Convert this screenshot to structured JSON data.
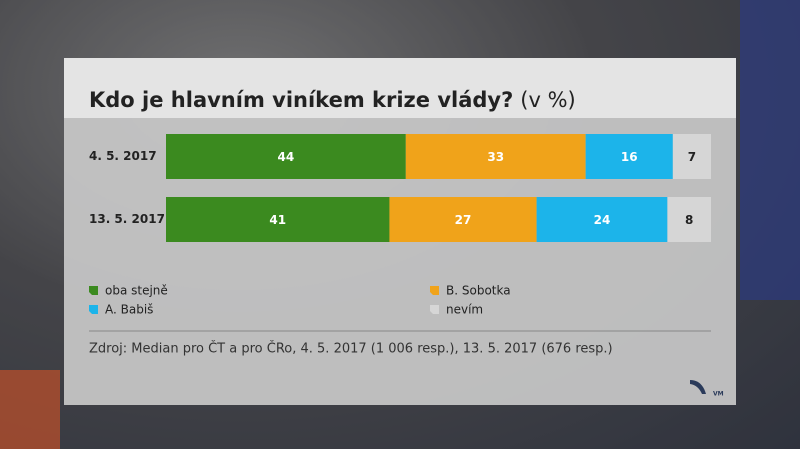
{
  "chart_data": {
    "type": "stacked-bar-horizontal",
    "title": "Kdo je hlavním viníkem krize vlády?",
    "subtitle": "(v %)",
    "categories": [
      "4. 5. 2017",
      "13. 5. 2017"
    ],
    "series": [
      {
        "name": "oba stejně",
        "color": "#3b8a1f",
        "values": [
          44,
          41
        ]
      },
      {
        "name": "B. Sobotka",
        "color": "#f0a31a",
        "values": [
          33,
          27
        ]
      },
      {
        "name": "A. Babiš",
        "color": "#1cb4ea",
        "values": [
          16,
          24
        ]
      },
      {
        "name": "nevím",
        "color": "#d6d6d6",
        "values": [
          7,
          8
        ]
      }
    ],
    "xlim": [
      0,
      100
    ],
    "source": "Zdroj: Median pro ČT a pro ČRo, 4. 5. 2017 (1 006 resp.), 13. 5. 2017 (676 resp.)",
    "logo_text": "VM"
  }
}
